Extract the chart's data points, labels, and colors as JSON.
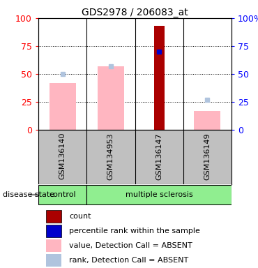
{
  "title": "GDS2978 / 206083_at",
  "samples": [
    "GSM136140",
    "GSM134953",
    "GSM136147",
    "GSM136149"
  ],
  "groups": [
    "control",
    "multiple sclerosis",
    "multiple sclerosis",
    "multiple sclerosis"
  ],
  "bar_colors": {
    "value_absent": "#FFB6C1",
    "rank_absent": "#B0C4DE",
    "count": "#AA0000",
    "percentile": "#0000CC"
  },
  "value_absent": [
    42,
    57,
    null,
    17
  ],
  "rank_absent": [
    50,
    57,
    null,
    27
  ],
  "count": [
    null,
    null,
    93,
    null
  ],
  "percentile": [
    null,
    null,
    70,
    null
  ],
  "ylim": [
    0,
    100
  ],
  "yticks": [
    0,
    25,
    50,
    75,
    100
  ],
  "disease_state_label": "disease state",
  "legend_items": [
    {
      "color": "#AA0000",
      "label": "count"
    },
    {
      "color": "#0000CC",
      "label": "percentile rank within the sample"
    },
    {
      "color": "#FFB6C1",
      "label": "value, Detection Call = ABSENT"
    },
    {
      "color": "#B0C4DE",
      "label": "rank, Detection Call = ABSENT"
    }
  ],
  "background_color": "#ffffff",
  "group_box_color": "#90EE90",
  "sample_label_bg": "#C0C0C0",
  "title_fontsize": 10,
  "axis_fontsize": 9,
  "label_fontsize": 8,
  "legend_fontsize": 8
}
